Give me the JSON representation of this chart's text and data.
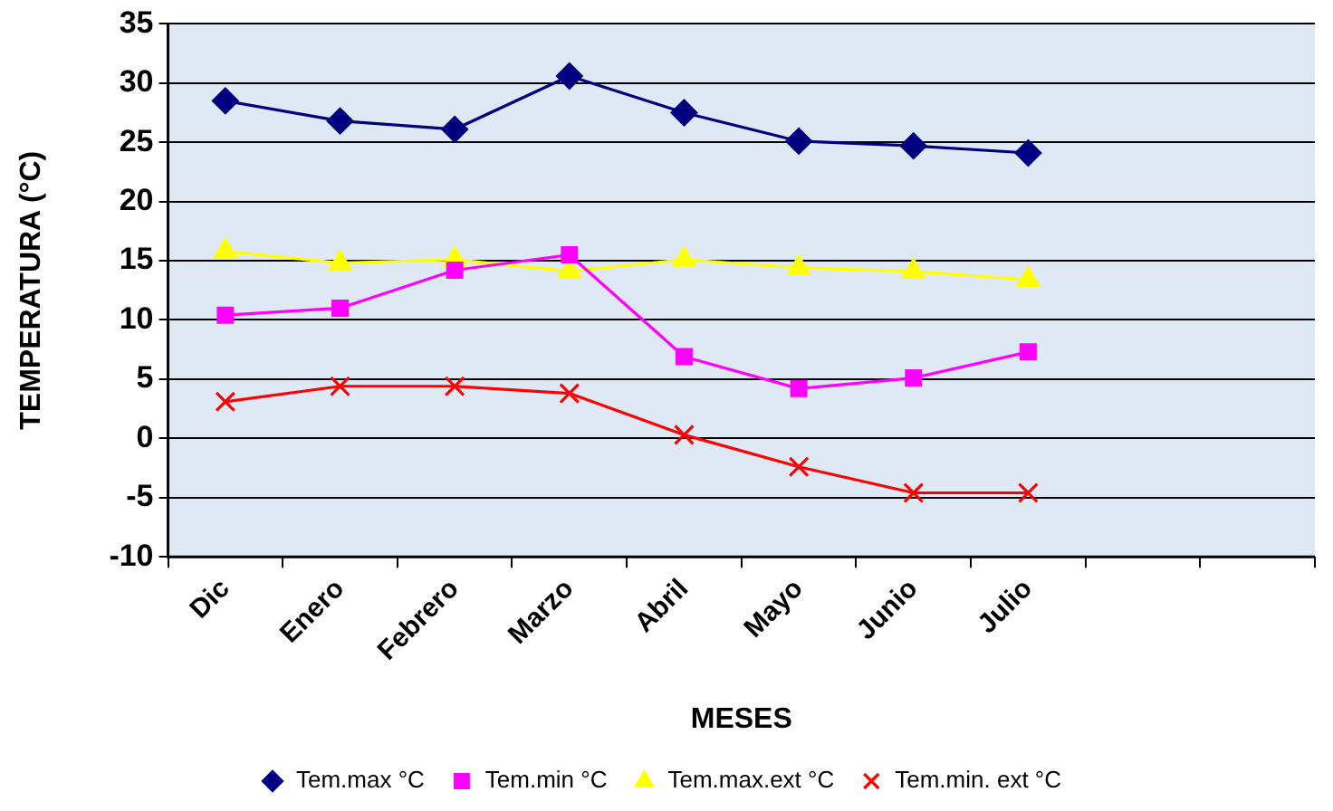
{
  "chart_data": {
    "type": "line",
    "xlabel": "MESES",
    "ylabel": "TEMPERATURA (°C)",
    "categories": [
      "Dic",
      "Enero",
      "Febrero",
      "Marzo",
      "Abril",
      "Mayo",
      "Junio",
      "Julio",
      null,
      null
    ],
    "series": [
      {
        "name": "Tem.max °C",
        "color": "#000080",
        "marker": "diamond",
        "values": [
          28.5,
          26.8,
          26.1,
          30.6,
          27.5,
          25.1,
          24.7,
          24.1,
          null,
          null
        ]
      },
      {
        "name": "Tem.min °C",
        "color": "#ff00ff",
        "marker": "square",
        "values": [
          10.4,
          11.0,
          14.2,
          15.5,
          6.9,
          4.2,
          5.1,
          7.3,
          null,
          null
        ]
      },
      {
        "name": "Tem.max.ext °C",
        "color": "#ffff00",
        "marker": "triangle",
        "values": [
          15.8,
          14.8,
          15.1,
          14.1,
          15.1,
          14.4,
          14.1,
          13.4,
          null,
          null
        ]
      },
      {
        "name": "Tem.min. ext °C",
        "color": "#ff0000",
        "marker": "cross",
        "values": [
          3.1,
          4.4,
          4.4,
          3.8,
          0.3,
          -2.4,
          -4.6,
          -4.6,
          null,
          null
        ]
      }
    ],
    "ylim": [
      -10,
      35
    ],
    "yticks": [
      -10,
      -5,
      0,
      5,
      10,
      15,
      20,
      25,
      30,
      35
    ],
    "grid": "y",
    "legend": "bottom"
  }
}
